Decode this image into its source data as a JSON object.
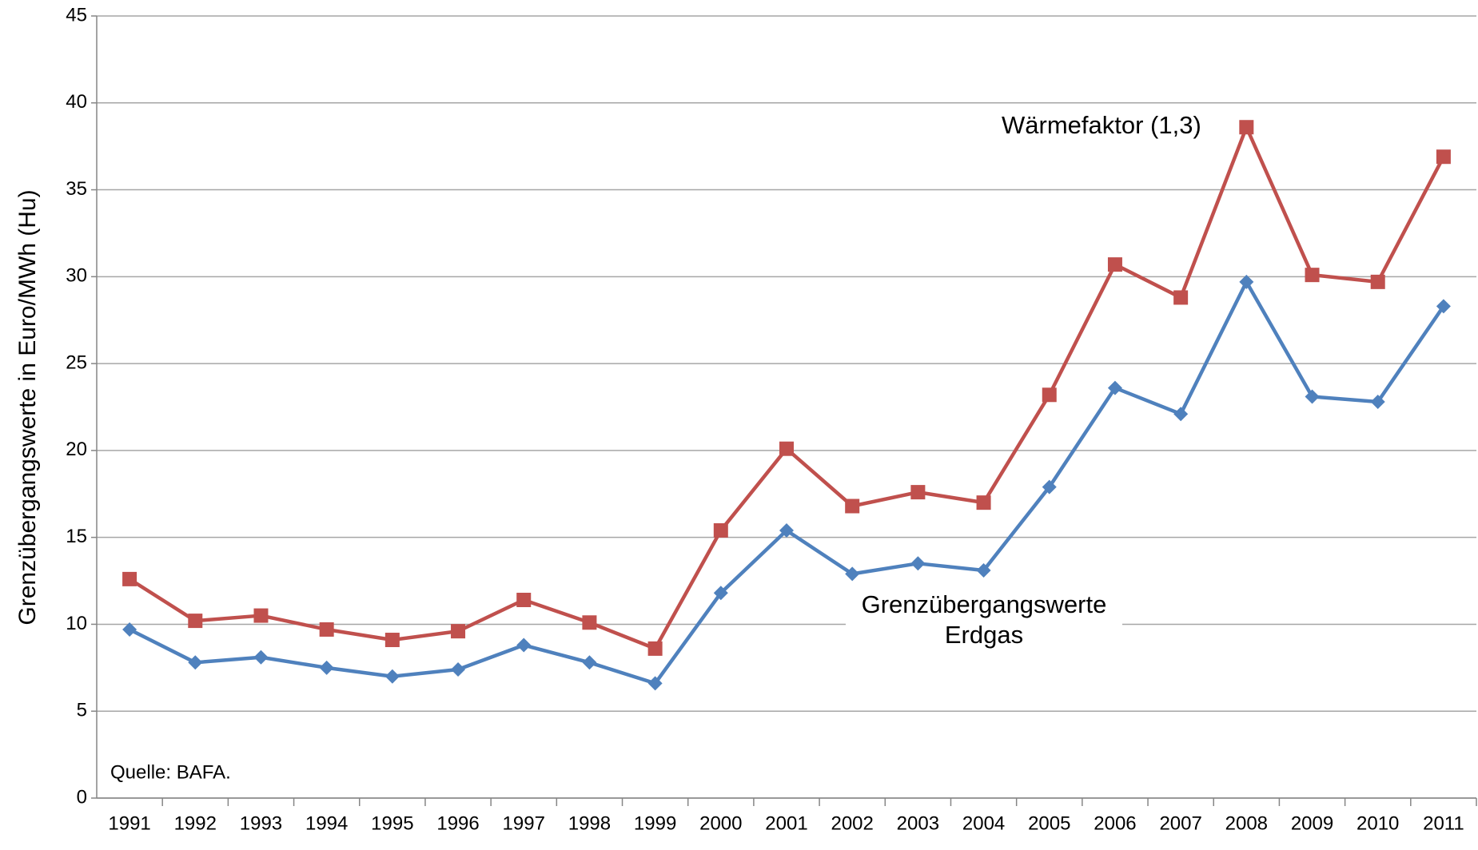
{
  "chart_data": {
    "type": "line",
    "y_label": "Grenzübergangswerte in Euro/MWh (Hu)",
    "source": "Quelle: BAFA.",
    "categories": [
      "1991",
      "1992",
      "1993",
      "1994",
      "1995",
      "1996",
      "1997",
      "1998",
      "1999",
      "2000",
      "2001",
      "2002",
      "2003",
      "2004",
      "2005",
      "2006",
      "2007",
      "2008",
      "2009",
      "2010",
      "2011"
    ],
    "series": [
      {
        "name": "Wärmefaktor (1,3)",
        "color": "#c0504d",
        "marker": "square",
        "values": [
          12.6,
          10.2,
          10.5,
          9.7,
          9.1,
          9.6,
          11.4,
          10.1,
          8.6,
          15.4,
          20.1,
          16.8,
          17.6,
          17.0,
          23.2,
          30.7,
          28.8,
          38.6,
          30.1,
          29.7,
          36.9
        ]
      },
      {
        "name": "Grenzübergangswerte Erdgas",
        "color": "#4f81bd",
        "marker": "diamond",
        "values": [
          9.7,
          7.8,
          8.1,
          7.5,
          7.0,
          7.4,
          8.8,
          7.8,
          6.6,
          11.8,
          15.4,
          12.9,
          13.5,
          13.1,
          17.9,
          23.6,
          22.1,
          29.7,
          23.1,
          22.8,
          28.3
        ]
      }
    ],
    "ylim": [
      0,
      45
    ],
    "yticks": [
      0,
      5,
      10,
      15,
      20,
      25,
      30,
      35,
      40,
      45
    ],
    "grid": true
  }
}
